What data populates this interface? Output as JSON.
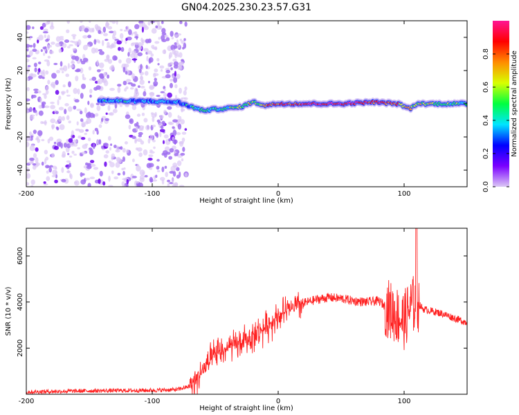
{
  "title": "GN04.2025.230.23.57.G31",
  "colorbar": {
    "label": "Normalized spectral amplitude",
    "ticks": [
      "0.0",
      "0.2",
      "0.4",
      "0.6",
      "0.8"
    ],
    "tick_values": [
      0.0,
      0.2,
      0.4,
      0.6,
      0.8
    ],
    "range": [
      0,
      1
    ],
    "colors": [
      "#dcc8f5",
      "#7a00ff",
      "#0000ff",
      "#00e5ff",
      "#00ff40",
      "#d8ff00",
      "#ff8c00",
      "#ff0000",
      "#ff1493"
    ]
  },
  "chart_data": [
    {
      "type": "heatmap",
      "xlabel": "Height of straight line (km)",
      "ylabel": "Frequency (Hz)",
      "xlim": [
        -200,
        150
      ],
      "ylim": [
        -50,
        50
      ],
      "xticks": [
        -200,
        -100,
        0,
        100
      ],
      "xtick_labels": [
        "-200",
        "-100",
        "0",
        "100"
      ],
      "yticks": [
        -40,
        -20,
        0,
        20,
        40
      ],
      "ytick_labels": [
        "-40",
        "-20",
        "0",
        "20",
        "40"
      ],
      "noise_region_x": [
        -200,
        -73
      ],
      "ridge": [
        {
          "x": -142,
          "y": 2,
          "amp": 0.35
        },
        {
          "x": -120,
          "y": 1.5,
          "amp": 0.35
        },
        {
          "x": -100,
          "y": 1.5,
          "amp": 0.3
        },
        {
          "x": -80,
          "y": 1,
          "amp": 0.3
        },
        {
          "x": -72,
          "y": -1,
          "amp": 0.35
        },
        {
          "x": -60,
          "y": -4,
          "amp": 0.4
        },
        {
          "x": -45,
          "y": -3,
          "amp": 0.45
        },
        {
          "x": -30,
          "y": -2,
          "amp": 0.55
        },
        {
          "x": -20,
          "y": 1,
          "amp": 0.6
        },
        {
          "x": -10,
          "y": -1,
          "amp": 0.7
        },
        {
          "x": 0,
          "y": 0,
          "amp": 0.85
        },
        {
          "x": 25,
          "y": 0,
          "amp": 0.95
        },
        {
          "x": 50,
          "y": 0,
          "amp": 0.95
        },
        {
          "x": 75,
          "y": 1,
          "amp": 0.9
        },
        {
          "x": 95,
          "y": 0,
          "amp": 0.8
        },
        {
          "x": 105,
          "y": -3,
          "amp": 0.6
        },
        {
          "x": 110,
          "y": 0,
          "amp": 0.6
        },
        {
          "x": 150,
          "y": 0,
          "amp": 0.5
        }
      ]
    },
    {
      "type": "line",
      "xlabel": "Height of straight line (km)",
      "ylabel": "SNR (10 * v/v)",
      "xlim": [
        -200,
        150
      ],
      "ylim": [
        0,
        7200
      ],
      "xticks": [
        -200,
        -100,
        0,
        100
      ],
      "xtick_labels": [
        "-200",
        "-100",
        "0",
        "100"
      ],
      "yticks": [
        2000,
        4000,
        6000
      ],
      "ytick_labels": [
        "2000",
        "4000",
        "6000"
      ],
      "series": [
        {
          "color": "#ff2020",
          "x": [
            -200,
            -150,
            -100,
            -80,
            -70,
            -60,
            -50,
            -40,
            -30,
            -20,
            -10,
            0,
            10,
            20,
            30,
            40,
            50,
            60,
            70,
            80,
            90,
            100,
            105,
            110,
            115,
            130,
            150
          ],
          "y": [
            100,
            150,
            170,
            200,
            350,
            1000,
            1700,
            2000,
            2200,
            2500,
            2900,
            3400,
            3700,
            3950,
            4100,
            4200,
            4150,
            4050,
            4000,
            4050,
            3600,
            3200,
            3800,
            4000,
            3700,
            3500,
            3100
          ]
        }
      ]
    }
  ]
}
